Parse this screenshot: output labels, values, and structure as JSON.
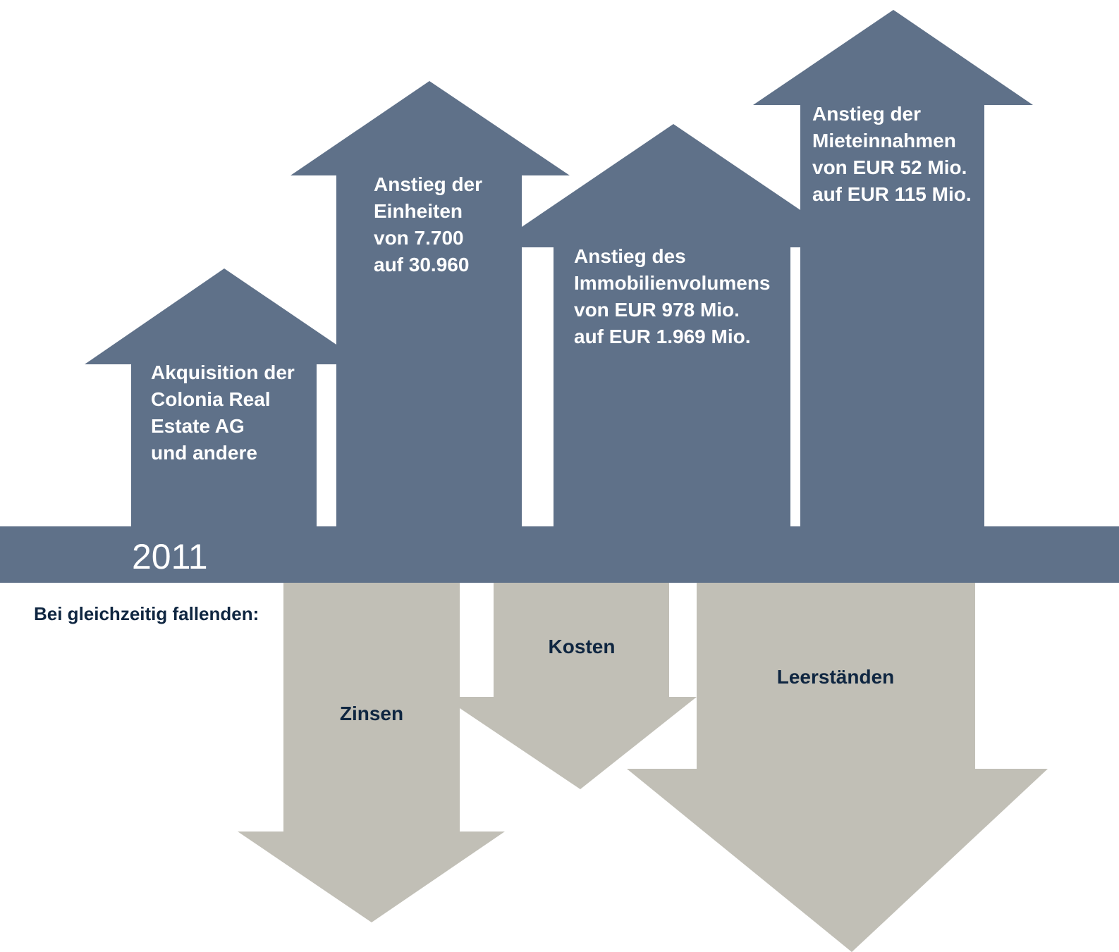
{
  "colors": {
    "up_arrow": "#5f7189",
    "down_arrow": "#c1bfb6",
    "timeline_band": "#5f7189",
    "up_text": "#ffffff",
    "down_text": "#0f2641",
    "background": "#ffffff"
  },
  "timeline": {
    "year": "2011"
  },
  "up_arrows": [
    {
      "lines": [
        "Akquisition der",
        "Colonia Real",
        "Estate AG",
        "und andere"
      ]
    },
    {
      "lines": [
        "Anstieg der",
        "Einheiten",
        "von 7.700",
        "auf 30.960"
      ]
    },
    {
      "lines": [
        "Anstieg des",
        "Immobilienvolumens",
        "von EUR 978 Mio.",
        "auf EUR 1.969 Mio."
      ]
    },
    {
      "lines": [
        "Anstieg der",
        "Mieteinnahmen",
        "von EUR 52 Mio.",
        "auf EUR 115 Mio."
      ]
    }
  ],
  "down_section": {
    "label": "Bei gleichzeitig fallenden:"
  },
  "down_arrows": [
    {
      "label": "Zinsen"
    },
    {
      "label": "Kosten"
    },
    {
      "label": "Leerständen"
    }
  ]
}
